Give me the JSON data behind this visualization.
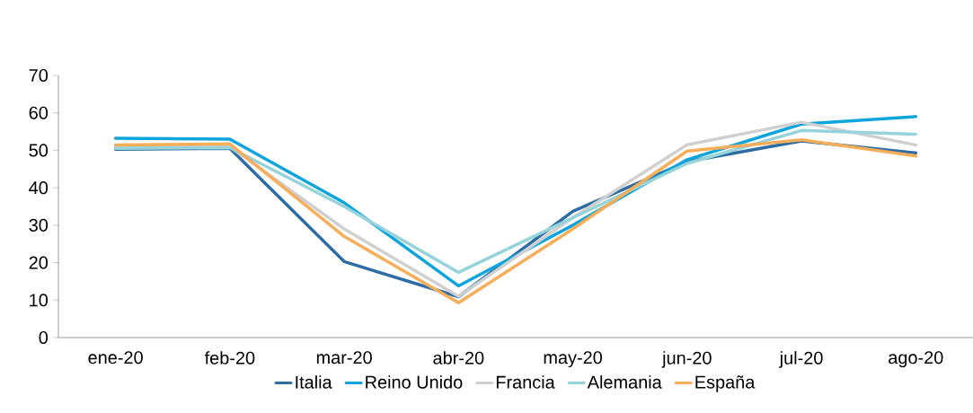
{
  "chart_data": {
    "type": "line",
    "categories": [
      "ene-20",
      "feb-20",
      "mar-20",
      "abr-20",
      "may-20",
      "jun-20",
      "jul-20",
      "ago-20"
    ],
    "series": [
      {
        "name": "Italia",
        "color": "#2e6da4",
        "values": [
          50.3,
          50.5,
          20.3,
          10.9,
          33.7,
          47,
          52.5,
          49.3
        ]
      },
      {
        "name": "Reino Unido",
        "color": "#0ea5dc",
        "values": [
          53.2,
          53,
          36,
          13.8,
          30,
          47.5,
          57,
          59
        ]
      },
      {
        "name": "Francia",
        "color": "#d0d0d0",
        "values": [
          51,
          51,
          29,
          11,
          32,
          51.5,
          57.5,
          51.4
        ]
      },
      {
        "name": "Alemania",
        "color": "#96d3da",
        "values": [
          50.5,
          50.7,
          35,
          17.4,
          32,
          46.5,
          55.3,
          54.3
        ]
      },
      {
        "name": "España",
        "color": "#f7ae5a",
        "values": [
          51.4,
          51.7,
          27,
          9.3,
          29,
          49.8,
          52.8,
          48.5
        ]
      }
    ],
    "ylim": [
      0,
      70
    ],
    "yticks": [
      0,
      10,
      20,
      30,
      40,
      50,
      60,
      70
    ],
    "grid": false,
    "legend": "bottom",
    "marker": "none",
    "line_style": "solid"
  }
}
